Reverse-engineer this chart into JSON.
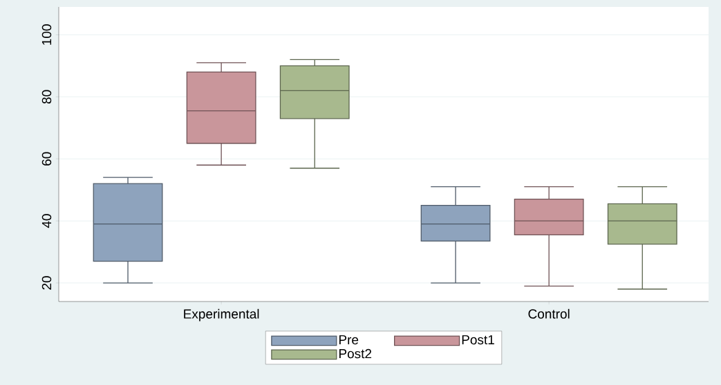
{
  "chart_data": {
    "type": "box",
    "categories": [
      "Experimental",
      "Control"
    ],
    "series": [
      {
        "name": "Pre",
        "color": "#8ea3bd",
        "boxes": [
          {
            "low": 20,
            "q1": 27,
            "median": 39,
            "q3": 52,
            "high": 54
          },
          {
            "low": 20,
            "q1": 33.5,
            "median": 39,
            "q3": 45,
            "high": 51
          }
        ]
      },
      {
        "name": "Post1",
        "color": "#c9969b",
        "boxes": [
          {
            "low": 58,
            "q1": 65,
            "median": 75.5,
            "q3": 88,
            "high": 91
          },
          {
            "low": 19,
            "q1": 35.5,
            "median": 40,
            "q3": 47,
            "high": 51
          }
        ]
      },
      {
        "name": "Post2",
        "color": "#a8b98e",
        "boxes": [
          {
            "low": 57,
            "q1": 73,
            "median": 82,
            "q3": 90,
            "high": 92
          },
          {
            "low": 18,
            "q1": 32.5,
            "median": 40,
            "q3": 45.5,
            "high": 51
          }
        ]
      }
    ],
    "ylim": [
      14,
      109
    ],
    "yticks": [
      20,
      40,
      60,
      80,
      100
    ],
    "grid": "y",
    "legend": "bottom"
  }
}
